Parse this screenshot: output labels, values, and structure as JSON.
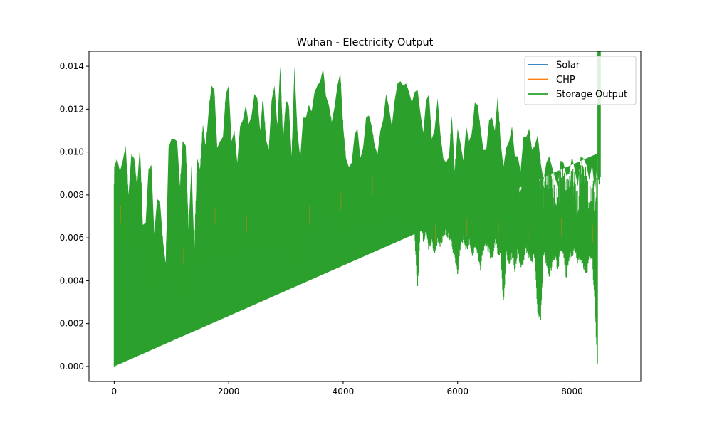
{
  "chart_data": {
    "type": "line",
    "title": "Wuhan - Electricity Output",
    "xlabel": "",
    "ylabel": "",
    "xlim": [
      -440,
      9200
    ],
    "ylim": [
      -0.0007,
      0.0147
    ],
    "xticks": [
      0,
      2000,
      4000,
      6000,
      8000
    ],
    "xtick_labels": [
      "0",
      "2000",
      "4000",
      "6000",
      "8000"
    ],
    "yticks": [
      0.0,
      0.002,
      0.004,
      0.006,
      0.008,
      0.01,
      0.012,
      0.014
    ],
    "ytick_labels": [
      "0.000",
      "0.002",
      "0.004",
      "0.006",
      "0.008",
      "0.010",
      "0.012",
      "0.014"
    ],
    "grid": false,
    "legend_position": "upper right",
    "series": [
      {
        "name": "Solar",
        "color": "#1f77b4",
        "note_values": "hourly series fully hidden beneath Storage Output",
        "values": []
      },
      {
        "name": "CHP",
        "color": "#ff7f0e",
        "note_values": "hourly series fully hidden beneath Storage Output",
        "values": []
      },
      {
        "name": "Storage Output",
        "color": "#2ca02c",
        "x_range": [
          0,
          8760
        ],
        "daily_peak_x": [
          0,
          50,
          100,
          150,
          200,
          250,
          300,
          350,
          400,
          450,
          500,
          550,
          600,
          650,
          700,
          750,
          800,
          850,
          900,
          950,
          1000,
          1050,
          1100,
          1150,
          1200,
          1250,
          1300,
          1350,
          1400,
          1450,
          1500,
          1550,
          1600,
          1650,
          1700,
          1750,
          1800,
          1850,
          1900,
          1950,
          2000,
          2050,
          2100,
          2150,
          2200,
          2250,
          2300,
          2350,
          2400,
          2450,
          2500,
          2550,
          2600,
          2650,
          2700,
          2750,
          2800,
          2850,
          2900,
          2950,
          3000,
          3050,
          3100,
          3150,
          3200,
          3250,
          3300,
          3350,
          3400,
          3450,
          3500,
          3550,
          3600,
          3650,
          3700,
          3750,
          3800,
          3850,
          3900,
          3950,
          4000,
          4050,
          4100,
          4150,
          4200,
          4250,
          4300,
          4350,
          4400,
          4450,
          4500,
          4550,
          4600,
          4650,
          4700,
          4750,
          4800,
          4850,
          4900,
          4950,
          5000,
          5050,
          5100,
          5150,
          5200,
          5250,
          5300,
          5350,
          5400,
          5450,
          5500,
          5550,
          5600,
          5650,
          5700,
          5750,
          5800,
          5850,
          5900,
          5950,
          6000,
          6050,
          6100,
          6150,
          6200,
          6250,
          6300,
          6350,
          6400,
          6450,
          6500,
          6550,
          6600,
          6650,
          6700,
          6750,
          6800,
          6850,
          6900,
          6950,
          7000,
          7050,
          7100,
          7150,
          7200,
          7250,
          7300,
          7350,
          7400,
          7450,
          7500,
          7550,
          7600,
          7650,
          7700,
          7750,
          7800,
          7850,
          7900,
          7950,
          8000,
          8050,
          8100,
          8150,
          8200,
          8250,
          8300,
          8350,
          8400,
          8450,
          8500,
          8550,
          8600,
          8650,
          8700,
          8760
        ],
        "daily_peak_y": [
          0.0093,
          0.0097,
          0.0091,
          0.0096,
          0.0103,
          0.008,
          0.0099,
          0.0097,
          0.0084,
          0.0103,
          0.0066,
          0.0067,
          0.0092,
          0.0094,
          0.0062,
          0.0078,
          0.0077,
          0.0059,
          0.0048,
          0.0102,
          0.0106,
          0.0106,
          0.0105,
          0.0084,
          0.0105,
          0.0103,
          0.0064,
          0.0094,
          0.0054,
          0.0097,
          0.0092,
          0.0113,
          0.0102,
          0.0119,
          0.0131,
          0.0129,
          0.0102,
          0.0105,
          0.0107,
          0.0127,
          0.0131,
          0.0105,
          0.011,
          0.0095,
          0.0112,
          0.0115,
          0.0122,
          0.0113,
          0.0117,
          0.0127,
          0.0125,
          0.011,
          0.0126,
          0.0106,
          0.0101,
          0.0124,
          0.0131,
          0.0112,
          0.014,
          0.0106,
          0.0124,
          0.0122,
          0.0098,
          0.014,
          0.011,
          0.0097,
          0.0116,
          0.0116,
          0.0122,
          0.0119,
          0.0128,
          0.0131,
          0.0133,
          0.0139,
          0.0126,
          0.0122,
          0.0114,
          0.0121,
          0.0131,
          0.0137,
          0.0112,
          0.0097,
          0.0093,
          0.0095,
          0.0108,
          0.0111,
          0.0097,
          0.0102,
          0.0116,
          0.0117,
          0.0112,
          0.0103,
          0.0099,
          0.011,
          0.0115,
          0.0127,
          0.0121,
          0.0112,
          0.0124,
          0.0132,
          0.0133,
          0.0131,
          0.0132,
          0.0128,
          0.0123,
          0.0128,
          0.0129,
          0.0118,
          0.0109,
          0.0124,
          0.0127,
          0.0106,
          0.0111,
          0.0125,
          0.0108,
          0.0097,
          0.0095,
          0.0098,
          0.0117,
          0.0091,
          0.0111,
          0.0104,
          0.0096,
          0.0112,
          0.0105,
          0.0109,
          0.0123,
          0.0122,
          0.0111,
          0.0101,
          0.0101,
          0.0115,
          0.0116,
          0.011,
          0.0126,
          0.0105,
          0.0093,
          0.0102,
          0.0105,
          0.0112,
          0.0098,
          0.0098,
          0.0091,
          0.0107,
          0.0107,
          0.0111,
          0.0101,
          0.0103,
          0.0108,
          0.0095,
          0.0087,
          0.0095,
          0.0098,
          0.0093,
          0.0088,
          0.0084,
          0.0096,
          0.0095,
          0.0089,
          0.009,
          0.0098,
          0.0091,
          0.0084,
          0.0098,
          0.0097,
          0.0094,
          0.0087,
          0.0094,
          0.0081,
          0.0099,
          0.01
        ],
        "daily_low_y": [
          0.0,
          0.0049,
          0.0063,
          0.0055,
          0.006,
          0.0063,
          0.0057,
          0.0061,
          0.0058,
          0.0054,
          0.0038,
          0.0042,
          0.0017,
          0.0053,
          0.0024,
          0.0044,
          0.0036,
          0.0055,
          0.0048,
          0.0061,
          0.0054,
          0.0035,
          0.0049,
          0.003,
          0.0043,
          0.0056,
          0.0058,
          0.0037,
          0.0041,
          0.0053,
          0.0047,
          0.0057,
          0.0061,
          0.0056,
          0.0054,
          0.0062,
          0.0053,
          0.0058,
          0.0055,
          0.0049,
          0.0065,
          0.0058,
          0.0051,
          0.0066,
          0.0055,
          0.0063,
          0.0058,
          0.0066,
          0.0054,
          0.0061,
          0.0062,
          0.0058,
          0.0055,
          0.0057,
          0.0065,
          0.0061,
          0.0061,
          0.0066,
          0.0069,
          0.0053,
          0.0066,
          0.0059,
          0.0041,
          0.006,
          0.0054,
          0.0062,
          0.0059,
          0.0071,
          0.0063,
          0.0067,
          0.0075,
          0.0079,
          0.0076,
          0.007,
          0.0073,
          0.0068,
          0.0074,
          0.0072,
          0.0075,
          0.0069,
          0.0069,
          0.0064,
          0.0067,
          0.0071,
          0.0072,
          0.0066,
          0.0075,
          0.0072,
          0.0073,
          0.0078,
          0.0076,
          0.0069,
          0.0073,
          0.0062,
          0.0072,
          0.0072,
          0.0076,
          0.0071,
          0.0075,
          0.0075,
          0.0078,
          0.0072,
          0.0074,
          0.0076,
          0.007,
          0.0064,
          0.0038,
          0.0071,
          0.0061,
          0.0066,
          0.0057,
          0.0062,
          0.0054,
          0.0062,
          0.0059,
          0.0063,
          0.0065,
          0.0063,
          0.0059,
          0.0054,
          0.0047,
          0.0058,
          0.0062,
          0.0057,
          0.0061,
          0.0053,
          0.0058,
          0.0056,
          0.0048,
          0.0058,
          0.0059,
          0.0056,
          0.0052,
          0.0062,
          0.0056,
          0.0055,
          0.0032,
          0.0055,
          0.005,
          0.0055,
          0.0048,
          0.0057,
          0.0049,
          0.0051,
          0.0057,
          0.0053,
          0.0052,
          0.0055,
          0.0026,
          0.0024,
          0.0056,
          0.0051,
          0.0045,
          0.005,
          0.0054,
          0.0048,
          0.0057,
          0.0056,
          0.0044,
          0.0053,
          0.0055,
          0.0057,
          0.0051,
          0.0052,
          0.0049,
          0.0046,
          0.0053,
          0.0054,
          0.003,
          0.0
        ]
      }
    ]
  }
}
